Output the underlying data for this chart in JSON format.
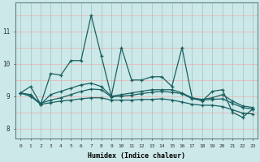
{
  "xlabel": "Humidex (Indice chaleur)",
  "bg_color": "#cce8e8",
  "grid_color_h": "#e8b8b8",
  "grid_color_v": "#a8c8c8",
  "line_color": "#1a6060",
  "ylim": [
    7.7,
    11.9
  ],
  "xlim": [
    -0.5,
    23.5
  ],
  "yticks": [
    8,
    9,
    10,
    11
  ],
  "ytick_labels": [
    "8",
    "9",
    "10",
    "11"
  ],
  "xticks": [
    0,
    1,
    2,
    3,
    4,
    5,
    6,
    7,
    8,
    9,
    10,
    11,
    12,
    13,
    14,
    15,
    16,
    17,
    18,
    19,
    20,
    21,
    22,
    23
  ],
  "series": [
    [
      9.1,
      9.3,
      8.75,
      9.7,
      9.65,
      10.1,
      10.1,
      11.5,
      10.25,
      9.0,
      10.5,
      9.5,
      9.5,
      9.6,
      9.6,
      9.3,
      10.5,
      8.95,
      8.85,
      9.15,
      9.2,
      8.5,
      8.35,
      8.6
    ],
    [
      9.1,
      9.05,
      8.75,
      9.05,
      9.15,
      9.25,
      9.35,
      9.4,
      9.3,
      9.0,
      9.05,
      9.1,
      9.15,
      9.2,
      9.2,
      9.2,
      9.1,
      8.95,
      8.9,
      8.95,
      9.05,
      8.85,
      8.7,
      8.65
    ],
    [
      9.1,
      9.0,
      8.78,
      8.88,
      8.95,
      9.05,
      9.15,
      9.22,
      9.2,
      8.98,
      9.0,
      9.03,
      9.08,
      9.12,
      9.15,
      9.12,
      9.08,
      8.92,
      8.88,
      8.9,
      8.92,
      8.78,
      8.65,
      8.6
    ],
    [
      9.1,
      9.0,
      8.75,
      8.8,
      8.85,
      8.88,
      8.92,
      8.95,
      8.95,
      8.88,
      8.88,
      8.88,
      8.9,
      8.9,
      8.92,
      8.88,
      8.82,
      8.75,
      8.72,
      8.72,
      8.68,
      8.58,
      8.48,
      8.45
    ]
  ]
}
